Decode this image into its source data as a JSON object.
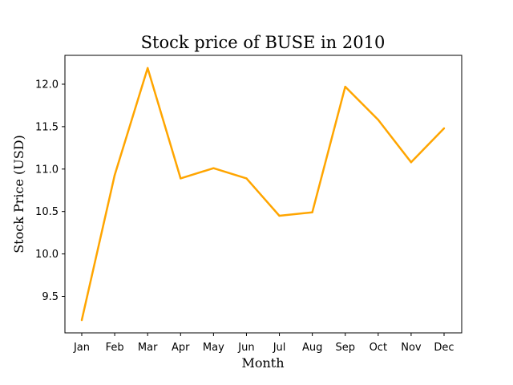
{
  "chart_data": {
    "type": "line",
    "title": "Stock price of BUSE in 2010",
    "xlabel": "Month",
    "ylabel": "Stock Price (USD)",
    "categories": [
      "Jan",
      "Feb",
      "Mar",
      "Apr",
      "May",
      "Jun",
      "Jul",
      "Aug",
      "Sep",
      "Oct",
      "Nov",
      "Dec"
    ],
    "series": [
      {
        "values": [
          9.22,
          10.93,
          12.19,
          10.89,
          11.01,
          10.89,
          10.45,
          10.49,
          11.97,
          11.58,
          11.08,
          11.48
        ],
        "color": "#ffa500"
      }
    ],
    "yticks": [
      9.5,
      10.0,
      10.5,
      11.0,
      11.5,
      12.0
    ],
    "ytick_labels": [
      "9.5",
      "10.0",
      "10.5",
      "11.0",
      "11.5",
      "12.0"
    ],
    "ylim": [
      9.07,
      12.34
    ],
    "grid": false,
    "legend": "none"
  }
}
